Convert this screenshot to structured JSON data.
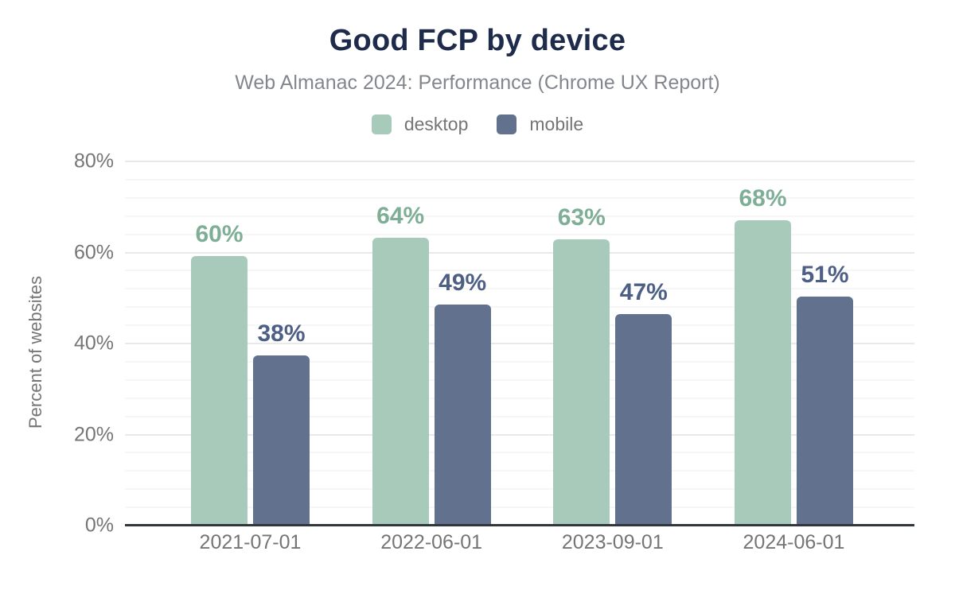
{
  "chart": {
    "title": "Good FCP by device",
    "subtitle": "Web Almanac 2024: Performance (Chrome UX Report)",
    "y_axis_title": "Percent of websites"
  },
  "colors": {
    "title_text": "#1e2b4a",
    "subtitle_text": "#83878d",
    "axis_text": "#757575",
    "axis_line": "#30363b",
    "gridline_minor": "#f6f6f6",
    "gridline_major": "#e9e9e9",
    "desktop_bar": "#a7cabb",
    "desktop_label": "#7fae96",
    "mobile_bar": "#62718e",
    "mobile_label": "#4e5f85"
  },
  "chart_data": {
    "type": "bar",
    "title": "Good FCP by device",
    "subtitle": "Web Almanac 2024: Performance (Chrome UX Report)",
    "xlabel": "",
    "ylabel": "Percent of websites",
    "categories": [
      "2021-07-01",
      "2022-06-01",
      "2023-09-01",
      "2024-06-01"
    ],
    "series": [
      {
        "name": "desktop",
        "values": [
          60,
          64,
          63,
          68
        ],
        "value_labels": [
          "60%",
          "64%",
          "63%",
          "68%"
        ],
        "bar_heights_pct": [
          59.3,
          63.3,
          62.9,
          67.0
        ],
        "bar_color": "#a7cabb",
        "label_color": "#7fae96"
      },
      {
        "name": "mobile",
        "values": [
          38,
          49,
          47,
          51
        ],
        "value_labels": [
          "38%",
          "49%",
          "47%",
          "51%"
        ],
        "bar_heights_pct": [
          37.4,
          48.5,
          46.4,
          50.3
        ],
        "bar_color": "#62718e",
        "label_color": "#4e5f85"
      }
    ],
    "ylim": [
      0,
      80
    ],
    "y_ticks": [
      {
        "value": 0,
        "label": "0%"
      },
      {
        "value": 20,
        "label": "20%"
      },
      {
        "value": 40,
        "label": "40%"
      },
      {
        "value": 60,
        "label": "60%"
      },
      {
        "value": 80,
        "label": "80%"
      }
    ],
    "grid": "horizontal: minor lines every 4%, darker major lines every 20%",
    "legend_position": "top",
    "legend_entries": [
      "desktop",
      "mobile"
    ]
  }
}
